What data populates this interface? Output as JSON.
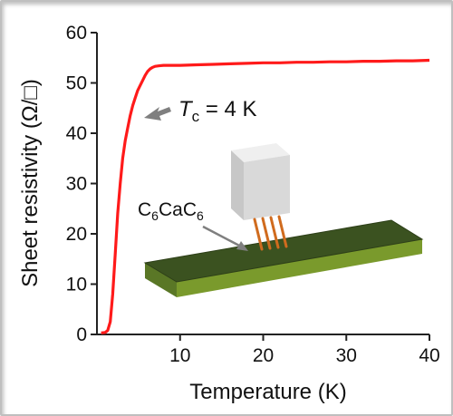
{
  "chart_data": {
    "type": "line",
    "xlabel": "Temperature (K)",
    "ylabel": "Sheet resistivity (Ω/□)",
    "xlim": [
      0,
      40
    ],
    "ylim": [
      0,
      60
    ],
    "xticks": [
      10,
      20,
      30,
      40
    ],
    "yticks": [
      0,
      10,
      20,
      30,
      40,
      50,
      60
    ],
    "grid": false,
    "series": [
      {
        "color": "#ff1a1a",
        "x": [
          0.5,
          1.0,
          1.3,
          1.6,
          1.9,
          2.2,
          2.5,
          2.8,
          3.1,
          3.4,
          3.7,
          4.0,
          4.3,
          4.6,
          4.9,
          5.2,
          5.5,
          5.8,
          6.1,
          6.4,
          6.7,
          7.0,
          7.5,
          8.0,
          9,
          10,
          12,
          14,
          16,
          18,
          20,
          22,
          24,
          26,
          28,
          30,
          32,
          34,
          36,
          38,
          40
        ],
        "y": [
          0.3,
          0.4,
          0.8,
          2.5,
          8,
          16,
          24,
          30,
          35,
          38.5,
          41,
          43.5,
          45.5,
          47,
          48.5,
          49.5,
          50.5,
          51.5,
          52.3,
          52.8,
          53.1,
          53.3,
          53.4,
          53.5,
          53.5,
          53.5,
          53.6,
          53.7,
          53.8,
          53.9,
          54.0,
          54.0,
          54.1,
          54.1,
          54.2,
          54.2,
          54.3,
          54.3,
          54.4,
          54.4,
          54.5
        ]
      }
    ],
    "annotations": {
      "tc_symbol": "T",
      "tc_subscript": "c",
      "tc_value": " = 4 K",
      "material_main": "C",
      "material_sub1": "6",
      "material_mid": "CaC",
      "material_sub2": "6"
    }
  }
}
